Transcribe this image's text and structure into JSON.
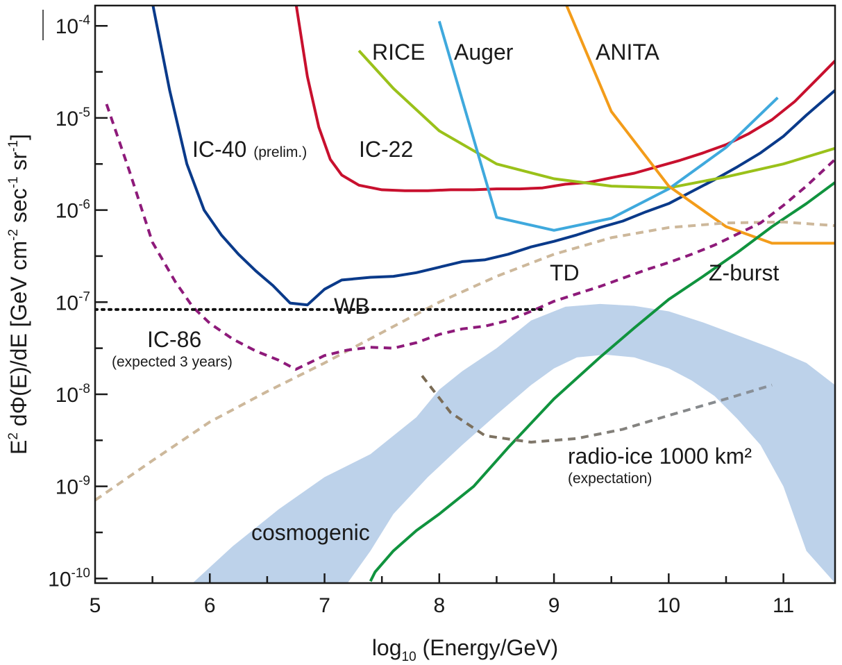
{
  "chart_data": {
    "type": "line",
    "xlabel": "log10 (Energy/GeV)",
    "xlabel_parts": {
      "pre": "log",
      "sub": "10",
      "post": " (Energy/GeV)"
    },
    "ylabel": "E² dΦ(E)/dE [GeV cm⁻² sec⁻¹ sr⁻¹]",
    "ylabel_parts": {
      "a": "E",
      "a_sup": "2",
      "b": " dΦ(E)/dE [GeV cm",
      "b_sup": "-2",
      "c": " sec",
      "c_sup": "-1",
      "d": " sr",
      "d_sup": "-1",
      "e": "]"
    },
    "xlim": [
      5,
      11.45
    ],
    "ylim_log10": [
      -10.05,
      -3.78
    ],
    "yscale": "log",
    "x_ticks": [
      {
        "value": 5,
        "label": "5"
      },
      {
        "value": 6,
        "label": "6"
      },
      {
        "value": 7,
        "label": "7"
      },
      {
        "value": 8,
        "label": "8"
      },
      {
        "value": 9,
        "label": "9"
      },
      {
        "value": 10,
        "label": "10"
      },
      {
        "value": 11,
        "label": "11"
      }
    ],
    "y_ticks": [
      {
        "value": -10,
        "base": "10",
        "exp": "-10"
      },
      {
        "value": -9,
        "base": "10",
        "exp": "-9"
      },
      {
        "value": -8,
        "base": "10",
        "exp": "-8"
      },
      {
        "value": -7,
        "base": "10",
        "exp": "-7"
      },
      {
        "value": -6,
        "base": "10",
        "exp": "-6"
      },
      {
        "value": -5,
        "base": "10",
        "exp": "-5"
      },
      {
        "value": -4,
        "base": "10",
        "exp": "-4"
      }
    ],
    "bands": [
      {
        "name": "cosmogenic",
        "color": "#bdd2ea",
        "upper": [
          [
            5.85,
            -10.05
          ],
          [
            6.2,
            -9.65
          ],
          [
            6.6,
            -9.25
          ],
          [
            7.0,
            -8.9
          ],
          [
            7.4,
            -8.65
          ],
          [
            7.8,
            -8.25
          ],
          [
            8.0,
            -7.95
          ],
          [
            8.2,
            -7.75
          ],
          [
            8.5,
            -7.5
          ],
          [
            8.8,
            -7.2
          ],
          [
            9.1,
            -7.05
          ],
          [
            9.4,
            -7.02
          ],
          [
            9.7,
            -7.04
          ],
          [
            10.0,
            -7.1
          ],
          [
            10.3,
            -7.22
          ],
          [
            10.6,
            -7.36
          ],
          [
            10.9,
            -7.5
          ],
          [
            11.2,
            -7.66
          ],
          [
            11.45,
            -7.9
          ]
        ],
        "lower": [
          [
            11.45,
            -10.05
          ],
          [
            11.2,
            -9.7
          ],
          [
            11.0,
            -9.0
          ],
          [
            10.8,
            -8.55
          ],
          [
            10.6,
            -8.27
          ],
          [
            10.4,
            -8.02
          ],
          [
            10.2,
            -7.85
          ],
          [
            10.0,
            -7.72
          ],
          [
            9.7,
            -7.6
          ],
          [
            9.45,
            -7.57
          ],
          [
            9.2,
            -7.6
          ],
          [
            9.0,
            -7.72
          ],
          [
            8.8,
            -7.9
          ],
          [
            8.5,
            -8.22
          ],
          [
            8.2,
            -8.55
          ],
          [
            7.9,
            -8.9
          ],
          [
            7.6,
            -9.3
          ],
          [
            7.4,
            -9.7
          ],
          [
            7.2,
            -10.05
          ]
        ]
      }
    ],
    "series": [
      {
        "name": "IC-40",
        "color": "#0a3a8a",
        "dashed": false,
        "points": [
          [
            5.5,
            -3.75
          ],
          [
            5.65,
            -4.7
          ],
          [
            5.8,
            -5.5
          ],
          [
            5.95,
            -6.0
          ],
          [
            6.1,
            -6.27
          ],
          [
            6.25,
            -6.48
          ],
          [
            6.4,
            -6.66
          ],
          [
            6.55,
            -6.82
          ],
          [
            6.7,
            -7.01
          ],
          [
            6.85,
            -7.03
          ],
          [
            7.0,
            -6.86
          ],
          [
            7.15,
            -6.76
          ],
          [
            7.4,
            -6.73
          ],
          [
            7.6,
            -6.72
          ],
          [
            7.8,
            -6.68
          ],
          [
            8.0,
            -6.62
          ],
          [
            8.2,
            -6.56
          ],
          [
            8.4,
            -6.54
          ],
          [
            8.6,
            -6.48
          ],
          [
            8.8,
            -6.4
          ],
          [
            9.0,
            -6.34
          ],
          [
            9.2,
            -6.27
          ],
          [
            9.4,
            -6.19
          ],
          [
            9.6,
            -6.12
          ],
          [
            9.8,
            -6.02
          ],
          [
            10.0,
            -5.93
          ],
          [
            10.2,
            -5.8
          ],
          [
            10.4,
            -5.67
          ],
          [
            10.6,
            -5.53
          ],
          [
            10.8,
            -5.38
          ],
          [
            11.0,
            -5.2
          ],
          [
            11.2,
            -4.97
          ],
          [
            11.45,
            -4.7
          ]
        ]
      },
      {
        "name": "IC-22",
        "color": "#c8102e",
        "dashed": false,
        "points": [
          [
            6.75,
            -3.75
          ],
          [
            6.85,
            -4.55
          ],
          [
            6.95,
            -5.1
          ],
          [
            7.05,
            -5.45
          ],
          [
            7.15,
            -5.62
          ],
          [
            7.3,
            -5.73
          ],
          [
            7.5,
            -5.78
          ],
          [
            7.7,
            -5.79
          ],
          [
            7.9,
            -5.79
          ],
          [
            8.1,
            -5.78
          ],
          [
            8.3,
            -5.78
          ],
          [
            8.5,
            -5.77
          ],
          [
            8.7,
            -5.77
          ],
          [
            8.9,
            -5.76
          ],
          [
            9.1,
            -5.72
          ],
          [
            9.3,
            -5.7
          ],
          [
            9.5,
            -5.65
          ],
          [
            9.7,
            -5.6
          ],
          [
            9.9,
            -5.53
          ],
          [
            10.1,
            -5.46
          ],
          [
            10.3,
            -5.38
          ],
          [
            10.5,
            -5.29
          ],
          [
            10.7,
            -5.17
          ],
          [
            10.9,
            -5.02
          ],
          [
            11.1,
            -4.82
          ],
          [
            11.3,
            -4.57
          ],
          [
            11.45,
            -4.38
          ]
        ]
      },
      {
        "name": "RICE",
        "color": "#9ac11a",
        "dashed": false,
        "points": [
          [
            7.3,
            -4.27
          ],
          [
            7.6,
            -4.68
          ],
          [
            8.0,
            -5.14
          ],
          [
            8.5,
            -5.5
          ],
          [
            9.0,
            -5.66
          ],
          [
            9.5,
            -5.74
          ],
          [
            10.0,
            -5.76
          ],
          [
            10.5,
            -5.64
          ],
          [
            11.0,
            -5.5
          ],
          [
            11.45,
            -5.33
          ]
        ]
      },
      {
        "name": "Auger",
        "color": "#3fa9dd",
        "dashed": false,
        "points": [
          [
            8.0,
            -3.95
          ],
          [
            8.5,
            -6.08
          ],
          [
            9.0,
            -6.22
          ],
          [
            9.5,
            -6.09
          ],
          [
            10.0,
            -5.77
          ],
          [
            10.5,
            -5.32
          ],
          [
            10.95,
            -4.78
          ]
        ]
      },
      {
        "name": "ANITA",
        "color": "#f39c1a",
        "dashed": false,
        "points": [
          [
            9.1,
            -3.75
          ],
          [
            9.5,
            -4.93
          ],
          [
            10.0,
            -5.74
          ],
          [
            10.5,
            -6.18
          ],
          [
            10.9,
            -6.36
          ],
          [
            11.45,
            -6.36
          ]
        ]
      },
      {
        "name": "Z-burst",
        "color": "#10933e",
        "dashed": false,
        "points": [
          [
            7.4,
            -10.03
          ],
          [
            7.44,
            -9.93
          ],
          [
            7.6,
            -9.7
          ],
          [
            7.8,
            -9.48
          ],
          [
            8.0,
            -9.3
          ],
          [
            8.3,
            -9.0
          ],
          [
            8.6,
            -8.58
          ],
          [
            9.0,
            -8.05
          ],
          [
            9.4,
            -7.6
          ],
          [
            9.7,
            -7.28
          ],
          [
            10.0,
            -6.97
          ],
          [
            10.3,
            -6.72
          ],
          [
            10.6,
            -6.46
          ],
          [
            10.9,
            -6.18
          ],
          [
            11.2,
            -5.93
          ],
          [
            11.45,
            -5.7
          ]
        ]
      },
      {
        "name": "TD",
        "color": "#cdb89b",
        "dashed": true,
        "points": [
          [
            5.0,
            -9.15
          ],
          [
            5.5,
            -8.72
          ],
          [
            6.0,
            -8.3
          ],
          [
            6.5,
            -7.97
          ],
          [
            7.0,
            -7.66
          ],
          [
            7.5,
            -7.33
          ],
          [
            8.0,
            -7.0
          ],
          [
            8.5,
            -6.72
          ],
          [
            9.0,
            -6.48
          ],
          [
            9.5,
            -6.3
          ],
          [
            10.0,
            -6.19
          ],
          [
            10.5,
            -6.14
          ],
          [
            11.0,
            -6.13
          ],
          [
            11.45,
            -6.17
          ]
        ]
      },
      {
        "name": "IC-86",
        "color": "#8e1a7a",
        "dashed": true,
        "points": [
          [
            5.1,
            -4.85
          ],
          [
            5.3,
            -5.58
          ],
          [
            5.5,
            -6.35
          ],
          [
            5.7,
            -6.78
          ],
          [
            5.85,
            -7.05
          ],
          [
            6.0,
            -7.23
          ],
          [
            6.2,
            -7.4
          ],
          [
            6.4,
            -7.53
          ],
          [
            6.6,
            -7.63
          ],
          [
            6.75,
            -7.73
          ],
          [
            7.0,
            -7.58
          ],
          [
            7.2,
            -7.52
          ],
          [
            7.4,
            -7.49
          ],
          [
            7.6,
            -7.5
          ],
          [
            7.8,
            -7.44
          ],
          [
            8.0,
            -7.35
          ],
          [
            8.2,
            -7.29
          ],
          [
            8.4,
            -7.26
          ],
          [
            8.6,
            -7.2
          ],
          [
            8.8,
            -7.1
          ],
          [
            9.0,
            -6.99
          ],
          [
            9.2,
            -6.91
          ],
          [
            9.4,
            -6.83
          ],
          [
            9.6,
            -6.74
          ],
          [
            9.8,
            -6.65
          ],
          [
            10.0,
            -6.57
          ],
          [
            10.2,
            -6.48
          ],
          [
            10.4,
            -6.38
          ],
          [
            10.6,
            -6.26
          ],
          [
            10.8,
            -6.14
          ],
          [
            11.0,
            -5.95
          ],
          [
            11.2,
            -5.74
          ],
          [
            11.45,
            -5.45
          ]
        ]
      },
      {
        "name": "WB",
        "color": "#111111",
        "dashed": true,
        "dotted": true,
        "points": [
          [
            5.0,
            -7.08
          ],
          [
            8.9,
            -7.08
          ]
        ]
      },
      {
        "name": "radio-ice 1000 km²",
        "color": "#7a6a52",
        "color2": "#8a929c",
        "dashed": true,
        "points": [
          [
            7.85,
            -7.8
          ],
          [
            8.1,
            -8.2
          ],
          [
            8.4,
            -8.45
          ],
          [
            8.8,
            -8.52
          ],
          [
            9.2,
            -8.48
          ],
          [
            9.6,
            -8.38
          ],
          [
            10.0,
            -8.23
          ],
          [
            10.5,
            -8.05
          ],
          [
            10.9,
            -7.9
          ]
        ]
      }
    ],
    "annotations": [
      {
        "id": "ic40",
        "text": "IC-40",
        "note": "(prelim.)"
      },
      {
        "id": "ic22",
        "text": "IC-22"
      },
      {
        "id": "rice",
        "text": "RICE"
      },
      {
        "id": "auger",
        "text": "Auger"
      },
      {
        "id": "anita",
        "text": "ANITA"
      },
      {
        "id": "td",
        "text": "TD"
      },
      {
        "id": "zburst",
        "text": "Z-burst"
      },
      {
        "id": "wb",
        "text": "WB"
      },
      {
        "id": "ic86",
        "text": "IC-86",
        "note": "(expected 3 years)"
      },
      {
        "id": "radioice",
        "text": "radio-ice 1000 km²",
        "note": "(expectation)"
      },
      {
        "id": "cosmogenic",
        "text": "cosmogenic"
      }
    ]
  }
}
